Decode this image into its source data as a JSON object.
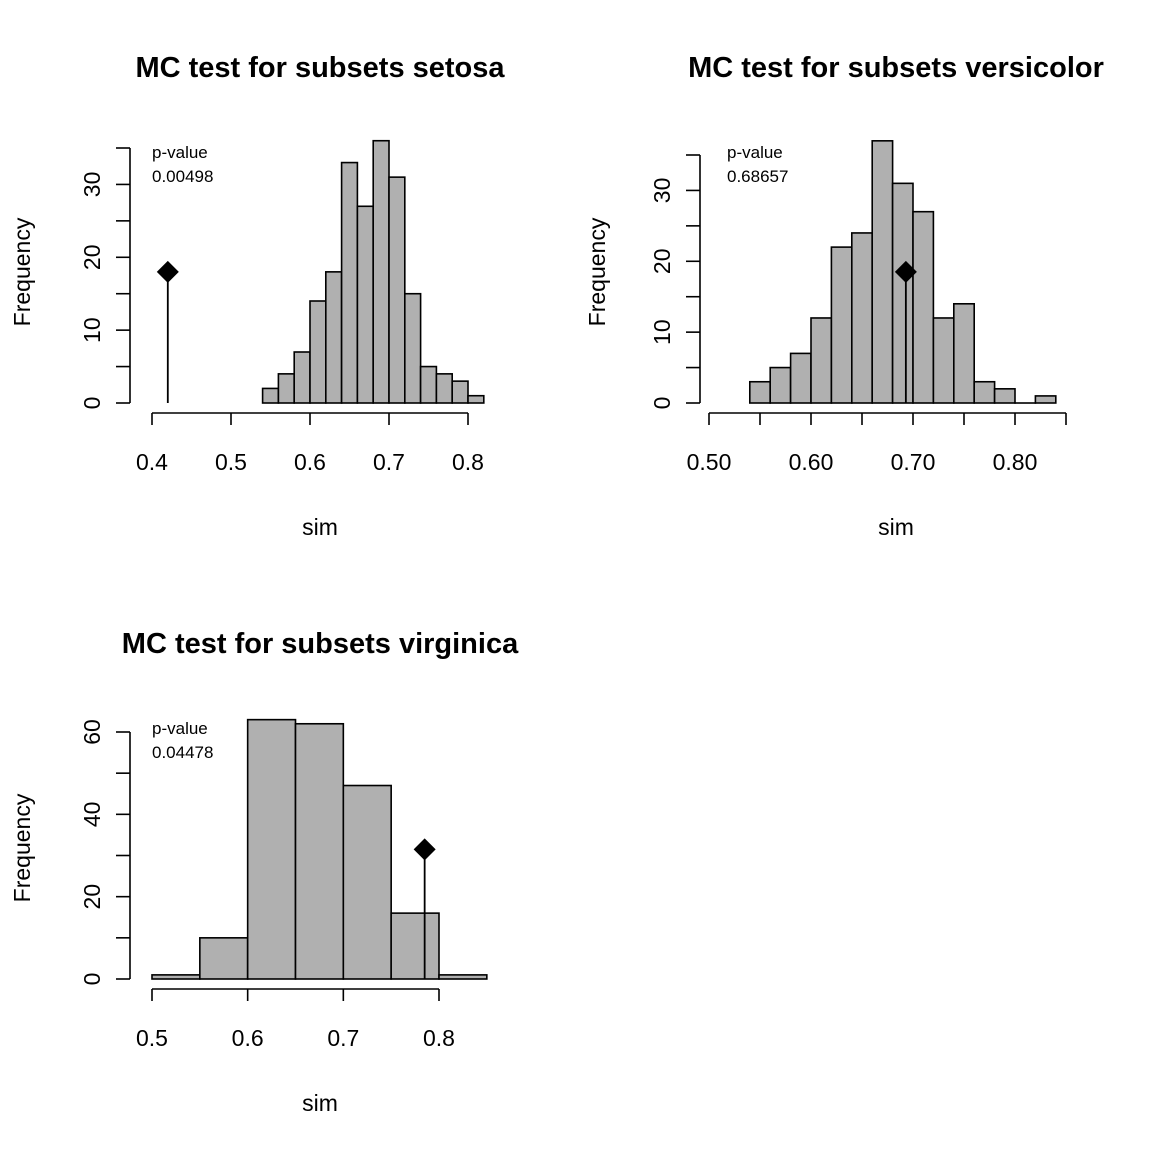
{
  "chart_data": [
    {
      "type": "bar",
      "title": "MC test for subsets setosa",
      "xlabel": "sim",
      "ylabel": "Frequency",
      "pvalue_label": "p-value",
      "pvalue": "0.00498",
      "observed": 0.42,
      "bin_width": 0.02,
      "bins": [
        {
          "x0": 0.54,
          "x1": 0.56,
          "count": 2
        },
        {
          "x0": 0.56,
          "x1": 0.58,
          "count": 4
        },
        {
          "x0": 0.58,
          "x1": 0.6,
          "count": 7
        },
        {
          "x0": 0.6,
          "x1": 0.62,
          "count": 14
        },
        {
          "x0": 0.62,
          "x1": 0.64,
          "count": 18
        },
        {
          "x0": 0.64,
          "x1": 0.66,
          "count": 33
        },
        {
          "x0": 0.66,
          "x1": 0.68,
          "count": 27
        },
        {
          "x0": 0.68,
          "x1": 0.7,
          "count": 36
        },
        {
          "x0": 0.7,
          "x1": 0.72,
          "count": 31
        },
        {
          "x0": 0.72,
          "x1": 0.74,
          "count": 15
        },
        {
          "x0": 0.74,
          "x1": 0.76,
          "count": 5
        },
        {
          "x0": 0.76,
          "x1": 0.78,
          "count": 4
        },
        {
          "x0": 0.78,
          "x1": 0.8,
          "count": 3
        },
        {
          "x0": 0.8,
          "x1": 0.82,
          "count": 1
        }
      ],
      "xlim": [
        0.4,
        0.82
      ],
      "ylim": [
        0,
        36
      ],
      "xticks": [
        0.4,
        0.5,
        0.6,
        0.7,
        0.8
      ],
      "xtick_labels": [
        "0.4",
        "0.5",
        "0.6",
        "0.7",
        "0.8"
      ],
      "yticks": [
        0,
        5,
        10,
        15,
        20,
        25,
        30,
        35
      ],
      "ytick_labels": [
        "0",
        "",
        "10",
        "",
        "20",
        "",
        "30",
        ""
      ]
    },
    {
      "type": "bar",
      "title": "MC test for subsets versicolor",
      "xlabel": "sim",
      "ylabel": "Frequency",
      "pvalue_label": "p-value",
      "pvalue": "0.68657",
      "observed": 0.693,
      "bin_width": 0.02,
      "bins": [
        {
          "x0": 0.54,
          "x1": 0.56,
          "count": 3
        },
        {
          "x0": 0.56,
          "x1": 0.58,
          "count": 5
        },
        {
          "x0": 0.58,
          "x1": 0.6,
          "count": 7
        },
        {
          "x0": 0.6,
          "x1": 0.62,
          "count": 12
        },
        {
          "x0": 0.62,
          "x1": 0.64,
          "count": 22
        },
        {
          "x0": 0.64,
          "x1": 0.66,
          "count": 24
        },
        {
          "x0": 0.66,
          "x1": 0.68,
          "count": 37
        },
        {
          "x0": 0.68,
          "x1": 0.7,
          "count": 31
        },
        {
          "x0": 0.7,
          "x1": 0.72,
          "count": 27
        },
        {
          "x0": 0.72,
          "x1": 0.74,
          "count": 12
        },
        {
          "x0": 0.74,
          "x1": 0.76,
          "count": 14
        },
        {
          "x0": 0.76,
          "x1": 0.78,
          "count": 3
        },
        {
          "x0": 0.78,
          "x1": 0.8,
          "count": 2
        },
        {
          "x0": 0.8,
          "x1": 0.82,
          "count": 0
        },
        {
          "x0": 0.82,
          "x1": 0.84,
          "count": 1
        }
      ],
      "xlim": [
        0.5,
        0.85
      ],
      "ylim": [
        0,
        37
      ],
      "xticks": [
        0.5,
        0.55,
        0.6,
        0.65,
        0.7,
        0.75,
        0.8,
        0.85
      ],
      "xtick_labels": [
        "0.50",
        "",
        "0.60",
        "",
        "0.70",
        "",
        "0.80",
        ""
      ],
      "yticks": [
        0,
        5,
        10,
        15,
        20,
        25,
        30,
        35
      ],
      "ytick_labels": [
        "0",
        "",
        "10",
        "",
        "20",
        "",
        "30",
        ""
      ]
    },
    {
      "type": "bar",
      "title": "MC test for subsets virginica",
      "xlabel": "sim",
      "ylabel": "Frequency",
      "pvalue_label": "p-value",
      "pvalue": "0.04478",
      "observed": 0.785,
      "bin_width": 0.05,
      "bins": [
        {
          "x0": 0.5,
          "x1": 0.55,
          "count": 1
        },
        {
          "x0": 0.55,
          "x1": 0.6,
          "count": 10
        },
        {
          "x0": 0.6,
          "x1": 0.65,
          "count": 63
        },
        {
          "x0": 0.65,
          "x1": 0.7,
          "count": 62
        },
        {
          "x0": 0.7,
          "x1": 0.75,
          "count": 47
        },
        {
          "x0": 0.75,
          "x1": 0.8,
          "count": 16
        },
        {
          "x0": 0.8,
          "x1": 0.85,
          "count": 1
        }
      ],
      "xlim": [
        0.5,
        0.85
      ],
      "ylim": [
        0,
        63
      ],
      "xticks": [
        0.5,
        0.6,
        0.7,
        0.8
      ],
      "xtick_labels": [
        "0.5",
        "0.6",
        "0.7",
        "0.8"
      ],
      "yticks": [
        0,
        10,
        20,
        30,
        40,
        50,
        60
      ],
      "ytick_labels": [
        "0",
        "",
        "20",
        "",
        "40",
        "",
        "60"
      ]
    }
  ]
}
